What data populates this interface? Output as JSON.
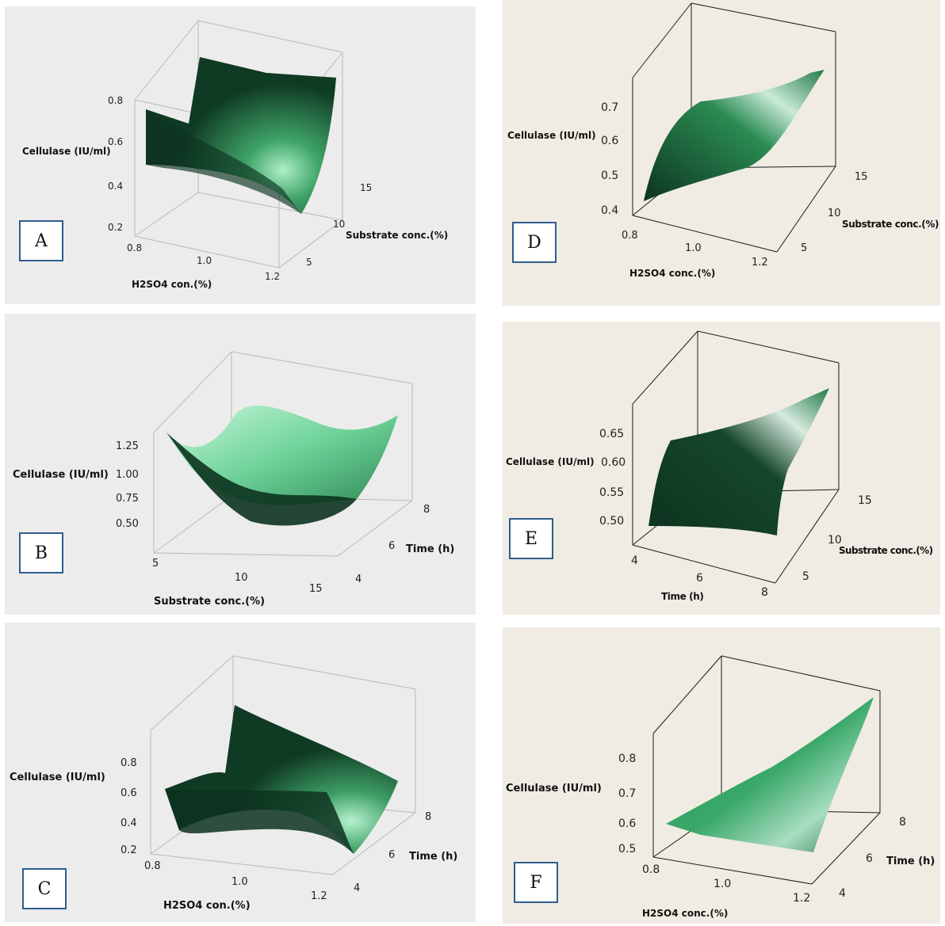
{
  "colors": {
    "left_bg": "#ececec",
    "right_bg": "#f0ece3",
    "surface_dark": "#0d3320",
    "surface_mid": "#1f7a45",
    "surface_light": "#9fe7bd",
    "box_border": "#2e5d8c"
  },
  "chart_data": [
    {
      "type": "surface",
      "letter": "A",
      "zlabel": "Cellulase (IU/ml)",
      "xlabel": "H2SO4 con.(%)",
      "ylabel": "Substrate conc.(%)",
      "zticks": [
        "0.8",
        "0.6",
        "0.4",
        "0.2"
      ],
      "xticks": [
        "0.8",
        "1.0",
        "1.2"
      ],
      "yticks": [
        "15",
        "10",
        "5"
      ]
    },
    {
      "type": "surface",
      "letter": "B",
      "zlabel": "Cellulase (IU/ml)",
      "xlabel": "Substrate conc.(%)",
      "ylabel": "Time (h)",
      "zticks": [
        "1.25",
        "1.00",
        "0.75",
        "0.50"
      ],
      "xticks": [
        "5",
        "10",
        "15"
      ],
      "yticks": [
        "8",
        "6",
        "4"
      ]
    },
    {
      "type": "surface",
      "letter": "C",
      "zlabel": "Cellulase (IU/ml)",
      "xlabel": "H2SO4 con.(%)",
      "ylabel": "Time (h)",
      "zticks": [
        "0.8",
        "0.6",
        "0.4",
        "0.2"
      ],
      "xticks": [
        "0.8",
        "1.0",
        "1.2"
      ],
      "yticks": [
        "8",
        "6",
        "4"
      ]
    },
    {
      "type": "surface",
      "letter": "D",
      "zlabel": "Cellulase (IU/ml)",
      "xlabel": "H2SO4 conc.(%)",
      "ylabel": "Substrate conc.(%)",
      "zticks": [
        "0.7",
        "0.6",
        "0.5",
        "0.4"
      ],
      "xticks": [
        "0.8",
        "1.0",
        "1.2"
      ],
      "yticks": [
        "15",
        "10",
        "5"
      ]
    },
    {
      "type": "surface",
      "letter": "E",
      "zlabel": "Cellulase (IU/ml)",
      "xlabel": "Time (h)",
      "ylabel": "Substrate conc.(%)",
      "zticks": [
        "0.65",
        "0.60",
        "0.55",
        "0.50"
      ],
      "xticks": [
        "4",
        "6",
        "8"
      ],
      "yticks": [
        "15",
        "10",
        "5"
      ]
    },
    {
      "type": "surface",
      "letter": "F",
      "zlabel": "Cellulase (IU/ml)",
      "xlabel": "H2SO4 conc.(%)",
      "ylabel": "Time (h)",
      "zticks": [
        "0.8",
        "0.7",
        "0.6",
        "0.5"
      ],
      "xticks": [
        "0.8",
        "1.0",
        "1.2"
      ],
      "yticks": [
        "8",
        "6",
        "4"
      ]
    }
  ]
}
